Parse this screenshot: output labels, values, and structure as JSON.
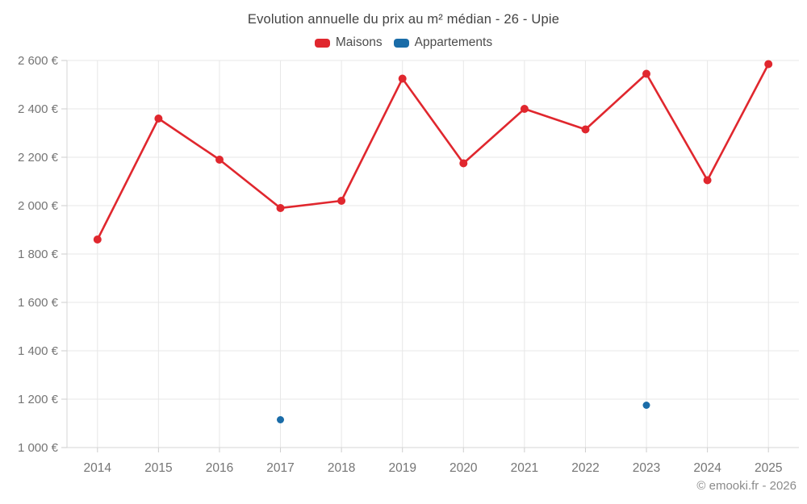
{
  "title": "Evolution annuelle du prix au m² médian - 26 - Upie",
  "watermark": "© emooki.fr - 2026",
  "legend": {
    "items": [
      {
        "label": "Maisons",
        "color": "#e0272e"
      },
      {
        "label": "Appartements",
        "color": "#1a6ca8"
      }
    ]
  },
  "axis": {
    "ytick_labels": [
      "1 000 €",
      "1 200 €",
      "1 400 €",
      "1 600 €",
      "1 800 €",
      "2 000 €",
      "2 200 €",
      "2 400 €",
      "2 600 €"
    ],
    "xtick_labels": [
      "2014",
      "2015",
      "2016",
      "2017",
      "2018",
      "2019",
      "2020",
      "2021",
      "2022",
      "2023",
      "2024",
      "2025"
    ]
  },
  "chart_data": {
    "type": "line",
    "title": "Evolution annuelle du prix au m² médian - 26 - Upie",
    "categories": [
      "2014",
      "2015",
      "2016",
      "2017",
      "2018",
      "2019",
      "2020",
      "2021",
      "2022",
      "2023",
      "2024",
      "2025"
    ],
    "series": [
      {
        "name": "Maisons",
        "color": "#e0272e",
        "draw_line": true,
        "marker_radius": 5,
        "values": [
          1860,
          2360,
          2190,
          1990,
          2020,
          2525,
          2175,
          2400,
          2315,
          2545,
          2105,
          2585
        ]
      },
      {
        "name": "Appartements",
        "color": "#1a6ca8",
        "draw_line": true,
        "marker_radius": 4.5,
        "values": [
          null,
          null,
          null,
          1115,
          null,
          null,
          null,
          null,
          null,
          1175,
          null,
          null
        ]
      }
    ],
    "xlabel": "",
    "ylabel": "",
    "ylim": [
      1000,
      2600
    ],
    "ytick_step": 200,
    "grid": true,
    "legend_position": "top"
  },
  "colors": {
    "background": "#ffffff",
    "grid": "#e7e7e7",
    "axis_line": "#d6d6d6",
    "tick": "#cdcdcd",
    "axis_label": "#757575",
    "title": "#424242",
    "legend_text": "#4c4c4c",
    "watermark": "#8b8b8b"
  }
}
